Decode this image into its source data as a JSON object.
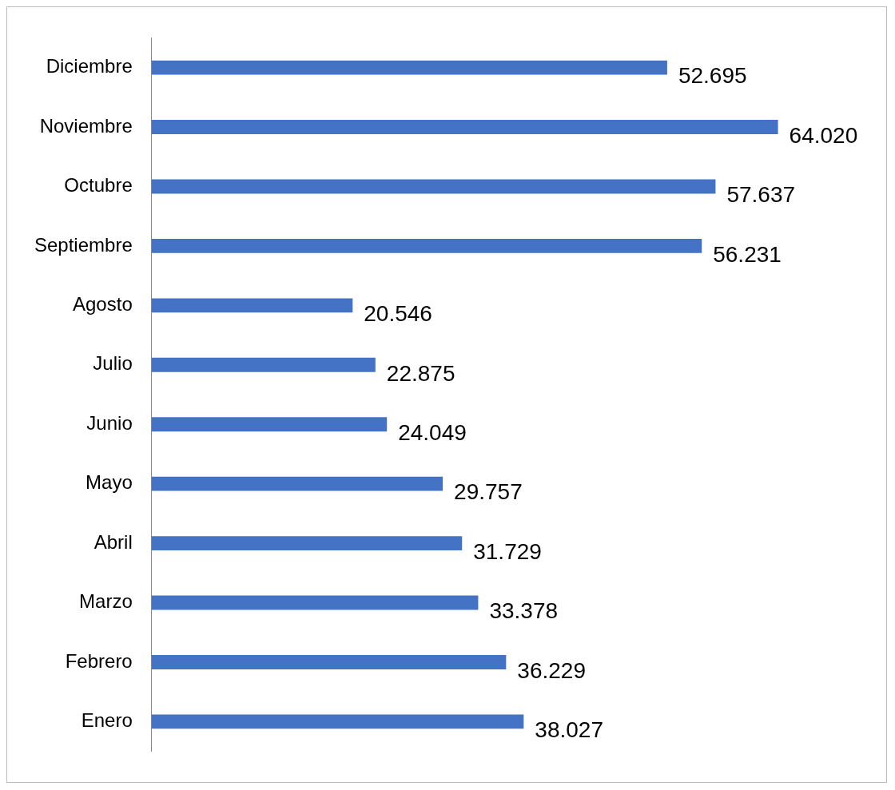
{
  "chart_data": {
    "type": "bar",
    "orientation": "horizontal",
    "categories": [
      "Diciembre",
      "Noviembre",
      "Octubre",
      "Septiembre",
      "Agosto",
      "Julio",
      "Junio",
      "Mayo",
      "Abril",
      "Marzo",
      "Febrero",
      "Enero"
    ],
    "values": [
      52695,
      64020,
      57637,
      56231,
      20546,
      22875,
      24049,
      29757,
      31729,
      33378,
      36229,
      38027
    ],
    "value_labels": [
      "52.695",
      "64.020",
      "57.637",
      "56.231",
      "20.546",
      "22.875",
      "24.049",
      "29.757",
      "31.729",
      "33.378",
      "36.229",
      "38.027"
    ],
    "color": "#4472c4",
    "legend": false
  }
}
